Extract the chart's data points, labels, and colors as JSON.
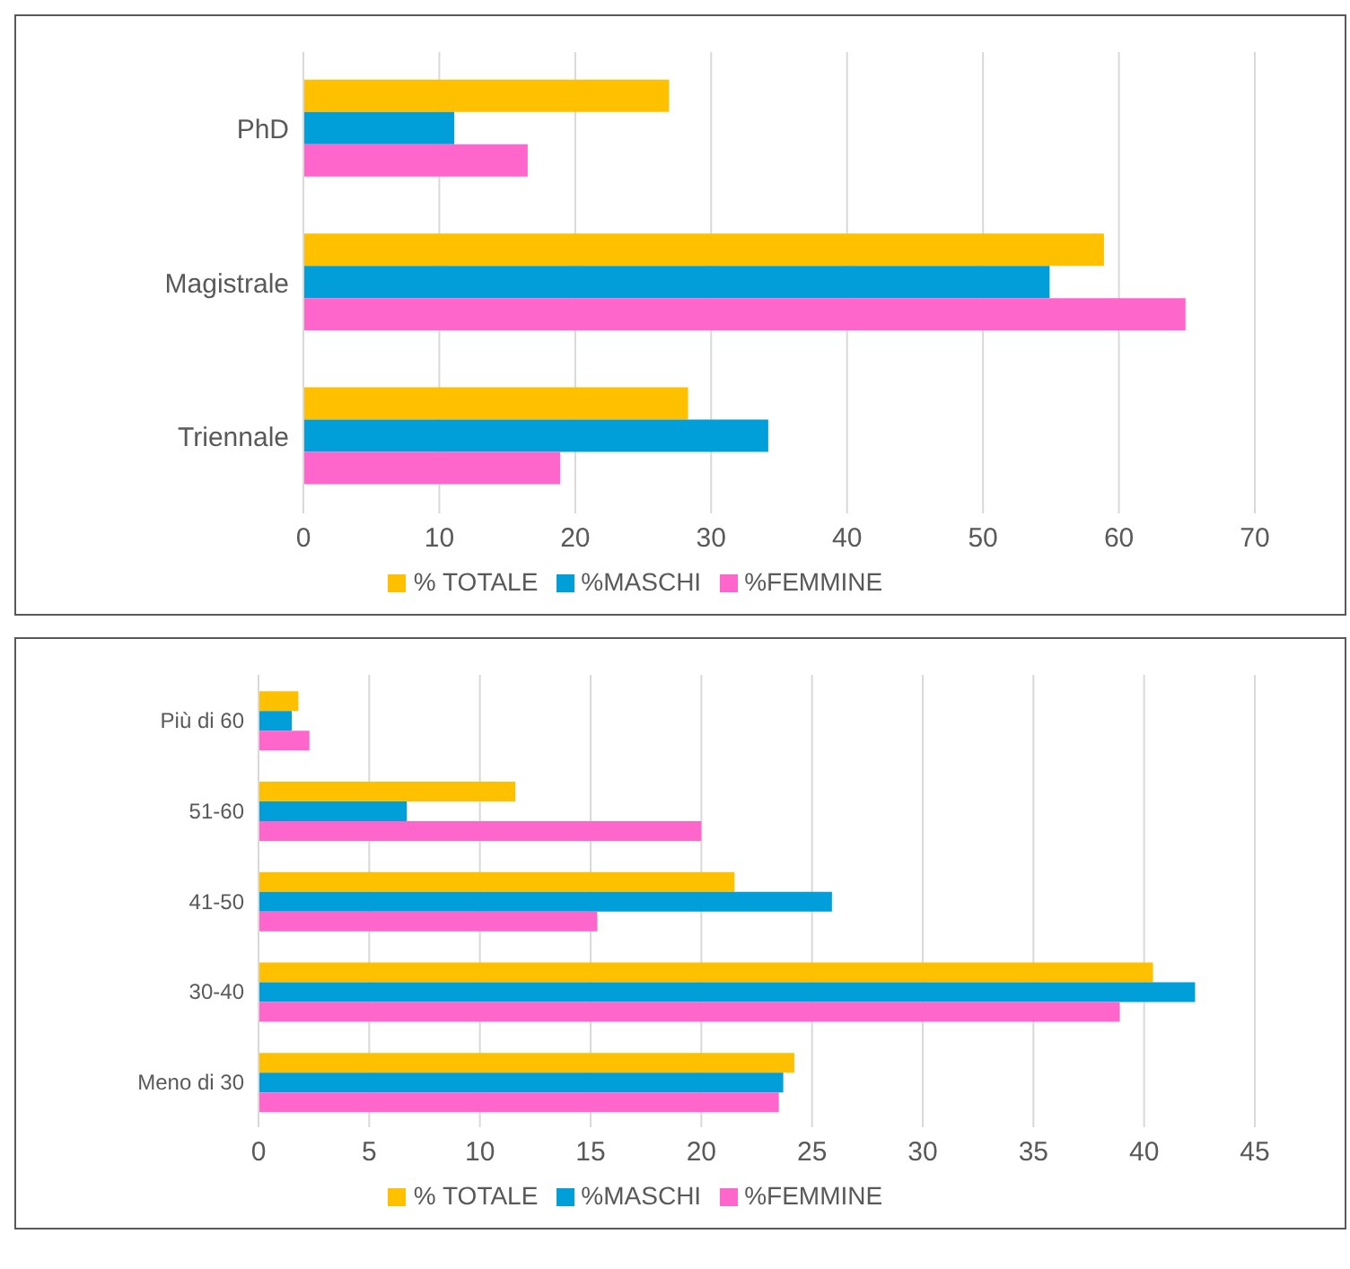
{
  "chart_data": [
    {
      "type": "bar",
      "orientation": "horizontal",
      "categories": [
        "PhD",
        "Magistrale",
        "Triennale"
      ],
      "series": [
        {
          "name": "% TOTALE",
          "color": "#ffc000",
          "values": [
            26.9,
            58.9,
            28.3
          ]
        },
        {
          "name": "%MASCHI",
          "color": "#009fda",
          "values": [
            11.1,
            54.9,
            34.2
          ]
        },
        {
          "name": "%FEMMINE",
          "color": "#ff66cc",
          "values": [
            16.5,
            64.9,
            18.9
          ]
        }
      ],
      "xlim": [
        0,
        70
      ],
      "xticks": [
        0,
        10,
        20,
        30,
        40,
        50,
        60,
        70
      ],
      "grid": "x",
      "legend": "bottom"
    },
    {
      "type": "bar",
      "orientation": "horizontal",
      "categories": [
        "Più di 60",
        "51-60",
        "41-50",
        "30-40",
        "Meno di 30"
      ],
      "series": [
        {
          "name": "% TOTALE",
          "color": "#ffc000",
          "values": [
            1.8,
            11.6,
            21.5,
            40.4,
            24.2
          ]
        },
        {
          "name": "%MASCHI",
          "color": "#009fda",
          "values": [
            1.5,
            6.7,
            25.9,
            42.3,
            23.7
          ]
        },
        {
          "name": "%FEMMINE",
          "color": "#ff66cc",
          "values": [
            2.3,
            20.0,
            15.3,
            38.9,
            23.5
          ]
        }
      ],
      "xlim": [
        0,
        45
      ],
      "xticks": [
        0,
        5,
        10,
        15,
        20,
        25,
        30,
        35,
        40,
        45
      ],
      "grid": "x",
      "legend": "bottom"
    }
  ]
}
